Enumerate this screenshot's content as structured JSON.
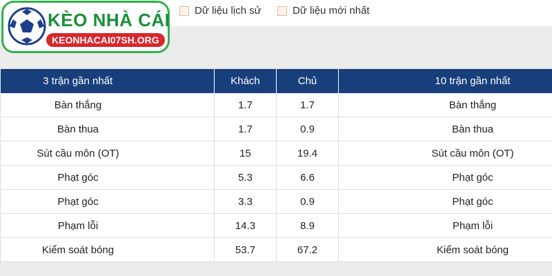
{
  "logo": {
    "title": "KÈO NHÀ CÁI",
    "url": "KEONHACAI07SH.ORG"
  },
  "filters": [
    "Dữ liệu lịch sử",
    "Dữ liệu mới nhất"
  ],
  "table": {
    "headers": [
      "3 trận gần nhất",
      "Khách",
      "Chủ",
      "10 trận gần nhất"
    ],
    "rows": [
      [
        "Bàn thắng",
        1.7,
        1.7,
        "Bàn thắng"
      ],
      [
        "Bàn thua",
        1.7,
        0.9,
        "Bàn thua"
      ],
      [
        "Sút cầu môn (OT)",
        15,
        19.4,
        "Sút cầu môn (OT)"
      ],
      [
        "Phạt góc",
        5.3,
        6.6,
        "Phạt góc"
      ],
      [
        "Phạt góc",
        3.3,
        0.9,
        "Phạt góc"
      ],
      [
        "Phạm lỗi",
        14.3,
        8.9,
        "Phạm lỗi"
      ],
      [
        "Kiểm soát bóng",
        53.7,
        67.2,
        "Kiểm soát bóng"
      ]
    ]
  }
}
